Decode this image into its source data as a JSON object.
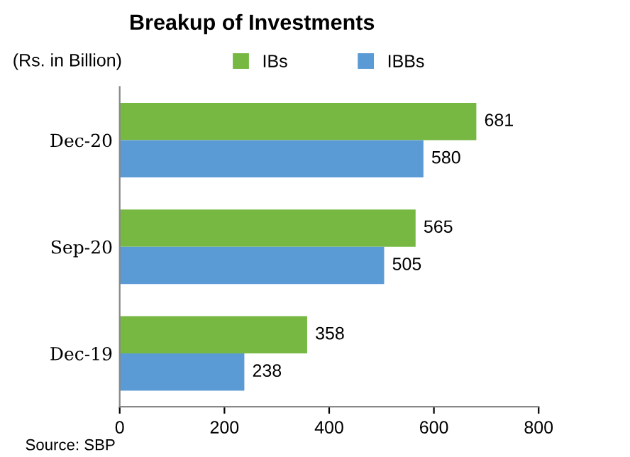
{
  "chart_data": {
    "type": "bar",
    "orientation": "horizontal",
    "title": "Breakup of Investments",
    "subtitle": "(Rs. in Billion)",
    "categories": [
      "Dec-20",
      "Sep-20",
      "Dec-19"
    ],
    "series": [
      {
        "name": "IBs",
        "color": "#77b843",
        "values": [
          681,
          565,
          358
        ]
      },
      {
        "name": "IBBs",
        "color": "#5b9bd5",
        "values": [
          580,
          505,
          238
        ]
      }
    ],
    "xlim": [
      0,
      800
    ],
    "xticks": [
      0,
      200,
      400,
      600,
      800
    ],
    "grid": false,
    "legend": "top",
    "data_labels": true,
    "annotations": [
      "Source: SBP"
    ]
  }
}
